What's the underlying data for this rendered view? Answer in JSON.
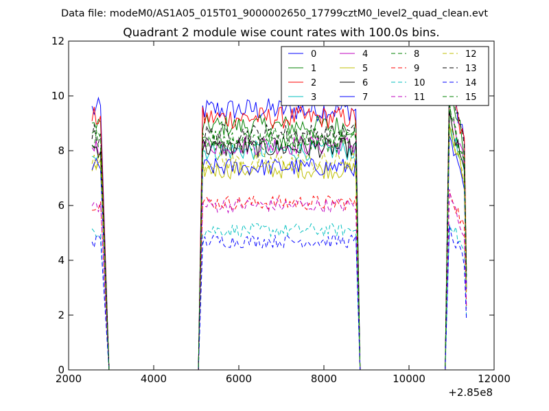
{
  "chart_data": {
    "type": "line",
    "suptitle": "Data file: modeM0/AS1A05_015T01_9000002650_17799cztM0_level2_quad_clean.evt",
    "title": "Quadrant 2 module wise count rates with 100.0s bins.",
    "xlabel": "",
    "ylabel": "",
    "x_offset_label": "+2.85e8",
    "xlim": [
      2000,
      12000
    ],
    "ylim": [
      0,
      12
    ],
    "x_ticks": [
      2000,
      4000,
      6000,
      8000,
      10000,
      12000
    ],
    "y_ticks": [
      0,
      2,
      4,
      6,
      8,
      10,
      12
    ],
    "x_tick_labels": [
      "2000",
      "4000",
      "6000",
      "8000",
      "10000",
      "12000"
    ],
    "y_tick_labels": [
      "0",
      "2",
      "4",
      "6",
      "8",
      "10",
      "12"
    ],
    "grid": false,
    "legend_position": "top-right",
    "legend_columns": 4,
    "segments": [
      {
        "start": 2550,
        "end": 2750,
        "drop_to": 2950
      },
      {
        "start": 5150,
        "end": 8750,
        "rise_from": 5050,
        "drop_to": 8850
      },
      {
        "start": 10950,
        "end": 11350,
        "rise_from": 10850
      }
    ],
    "zero_x": [
      2950,
      5050,
      8850,
      10850
    ],
    "series": [
      {
        "name": "0",
        "color": "#0000ff",
        "style": "solid",
        "level": 9.5,
        "peak": 10.6
      },
      {
        "name": "1",
        "color": "#008000",
        "style": "solid",
        "level": 8.9,
        "peak": 10.4
      },
      {
        "name": "2",
        "color": "#ff0000",
        "style": "solid",
        "level": 9.2,
        "peak": 10.5
      },
      {
        "name": "3",
        "color": "#00bfbf",
        "style": "solid",
        "level": 8.0,
        "peak": 9.0
      },
      {
        "name": "4",
        "color": "#bf00bf",
        "style": "solid",
        "level": 8.2,
        "peak": 9.5
      },
      {
        "name": "5",
        "color": "#bfbf00",
        "style": "solid",
        "level": 7.3,
        "peak": 8.8
      },
      {
        "name": "6",
        "color": "#000000",
        "style": "solid",
        "level": 8.1,
        "peak": 9.2
      },
      {
        "name": "7",
        "color": "#0000ff",
        "style": "solid",
        "level": 7.4,
        "peak": 8.4
      },
      {
        "name": "8",
        "color": "#008000",
        "style": "dashed",
        "level": 8.5,
        "peak": 9.8
      },
      {
        "name": "9",
        "color": "#ff0000",
        "style": "dashed",
        "level": 6.1,
        "peak": 6.6
      },
      {
        "name": "10",
        "color": "#00bfbf",
        "style": "dashed",
        "level": 5.1,
        "peak": 5.5
      },
      {
        "name": "11",
        "color": "#bf00bf",
        "style": "dashed",
        "level": 6.0,
        "peak": 6.4
      },
      {
        "name": "12",
        "color": "#bfbf00",
        "style": "dashed",
        "level": 7.6,
        "peak": 8.8
      },
      {
        "name": "13",
        "color": "#000000",
        "style": "dashed",
        "level": 8.6,
        "peak": 10.5
      },
      {
        "name": "14",
        "color": "#0000ff",
        "style": "dashed",
        "level": 4.7,
        "peak": 5.1
      },
      {
        "name": "15",
        "color": "#008000",
        "style": "dashed",
        "level": 8.3,
        "peak": 9.6
      }
    ]
  }
}
